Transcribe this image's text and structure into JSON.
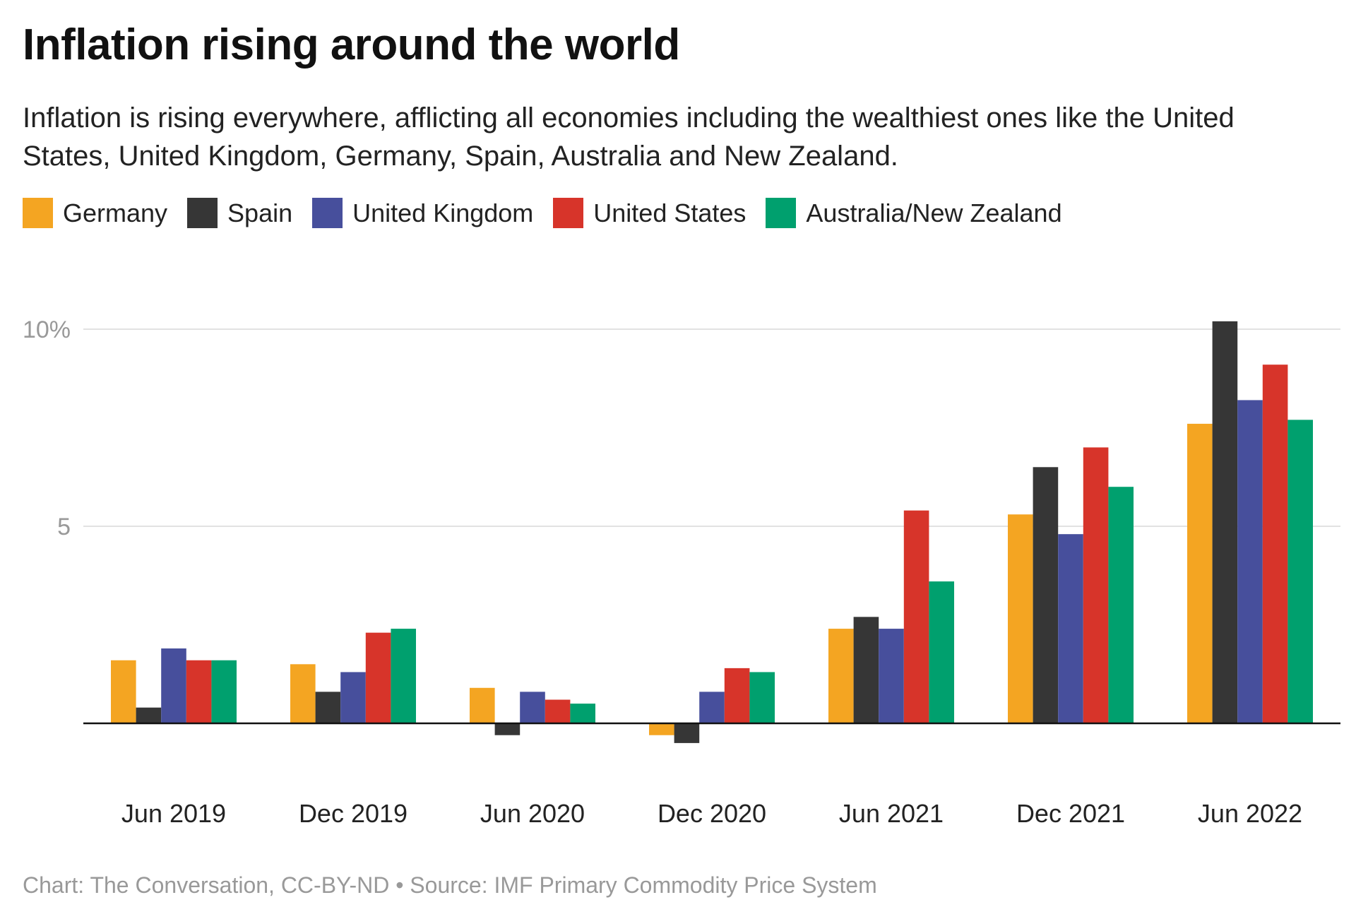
{
  "chart_data": {
    "type": "bar",
    "title": "Inflation rising around the world",
    "subtitle": "Inflation is rising everywhere, afflicting all economies including the wealthiest ones like the United States, United Kingdom, Germany, Spain, Australia and New Zealand.",
    "categories": [
      "Jun 2019",
      "Dec 2019",
      "Jun 2020",
      "Dec 2020",
      "Jun 2021",
      "Dec 2021",
      "Jun 2022"
    ],
    "series": [
      {
        "name": "Germany",
        "color": "#f4a522",
        "values": [
          1.6,
          1.5,
          0.9,
          -0.3,
          2.4,
          5.3,
          7.6
        ]
      },
      {
        "name": "Spain",
        "color": "#363636",
        "values": [
          0.4,
          0.8,
          -0.3,
          -0.5,
          2.7,
          6.5,
          10.2
        ]
      },
      {
        "name": "United Kingdom",
        "color": "#474f9c",
        "values": [
          1.9,
          1.3,
          0.8,
          0.8,
          2.4,
          4.8,
          8.2
        ]
      },
      {
        "name": "United States",
        "color": "#d7342a",
        "values": [
          1.6,
          2.3,
          0.6,
          1.4,
          5.4,
          7.0,
          9.1
        ]
      },
      {
        "name": "Australia/New Zealand",
        "color": "#00a06e",
        "values": [
          1.6,
          2.4,
          0.5,
          1.3,
          3.6,
          6.0,
          7.7
        ]
      }
    ],
    "y_ticks": [
      {
        "value": 5,
        "label": "5"
      },
      {
        "value": 10,
        "label": "10%"
      }
    ],
    "ylim": [
      -1.5,
      10.5
    ],
    "grid": true,
    "legend": "top-left",
    "footer": "Chart: The Conversation, CC-BY-ND • Source: IMF Primary Commodity Price System"
  }
}
